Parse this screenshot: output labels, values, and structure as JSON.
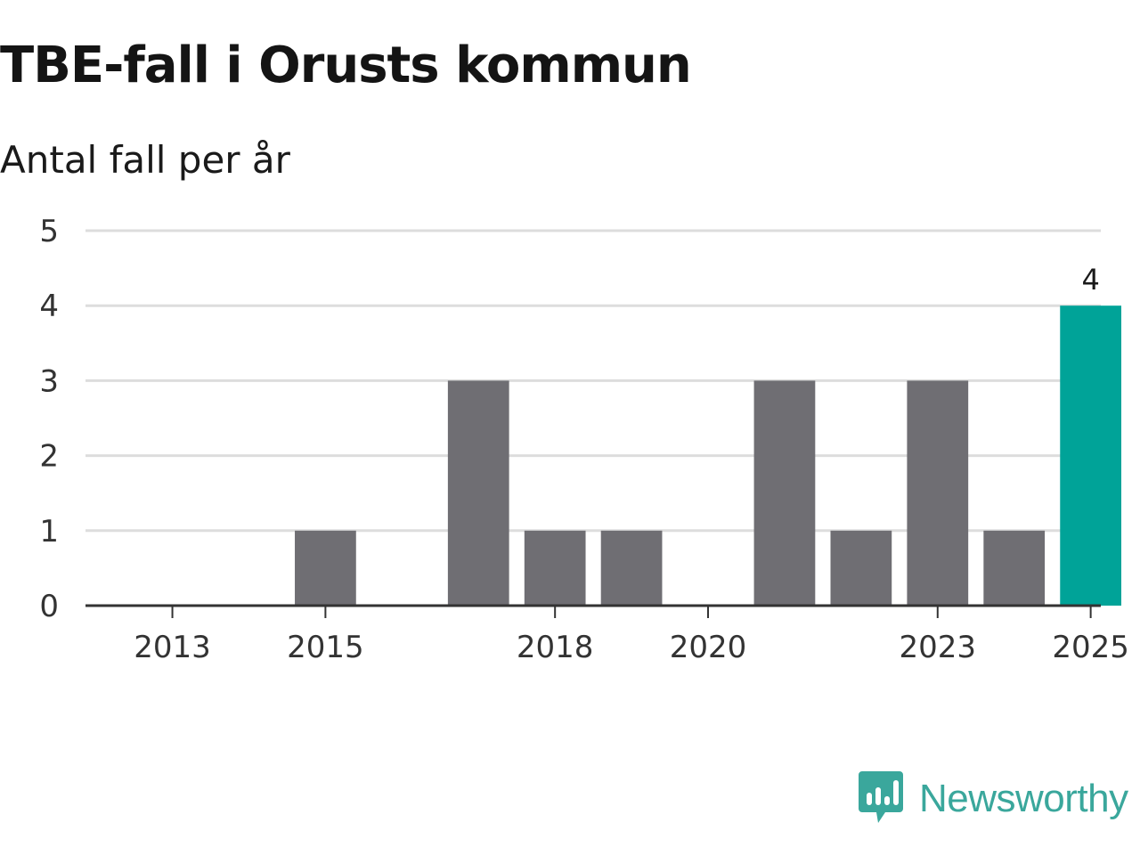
{
  "colors": {
    "default_bar": "#6f6e73",
    "highlight_bar": "#00a398",
    "grid": "#dddddd",
    "axis": "#333333",
    "brand": "#3aa79c"
  },
  "branding": {
    "name": "Newsworthy",
    "icon": "bar-chart-speech-bubble-icon"
  },
  "chart_data": {
    "type": "bar",
    "title": "TBE-fall i Orusts kommun",
    "subtitle": "Antal fall per år",
    "xlabel": "",
    "ylabel": "",
    "categories": [
      2013,
      2014,
      2015,
      2016,
      2017,
      2018,
      2019,
      2020,
      2021,
      2022,
      2023,
      2024,
      2025
    ],
    "values": [
      0,
      0,
      1,
      0,
      3,
      1,
      1,
      0,
      3,
      1,
      3,
      1,
      4
    ],
    "highlight": [
      2025
    ],
    "data_labels": [
      {
        "category": 2025,
        "label": "4"
      }
    ],
    "x_tick_labels": [
      "2013",
      "2015",
      "2018",
      "2020",
      "2023",
      "2025"
    ],
    "y_ticks": [
      0,
      1,
      2,
      3,
      4,
      5
    ],
    "ylim": [
      0,
      5
    ],
    "grid": true,
    "legend": "none"
  }
}
